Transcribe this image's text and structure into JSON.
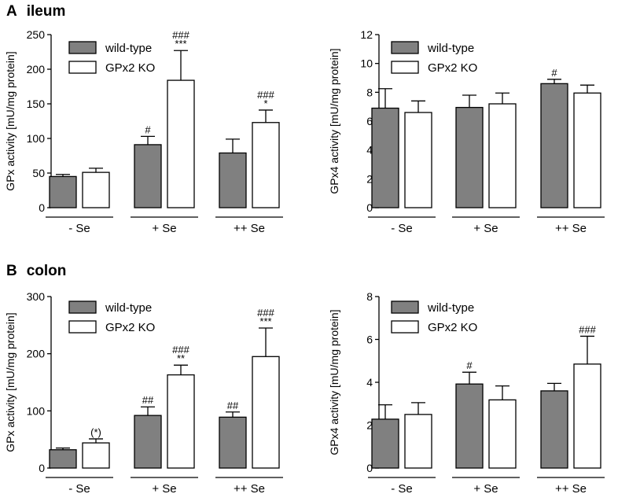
{
  "sections": [
    {
      "letter": "A",
      "title": "ileum"
    },
    {
      "letter": "B",
      "title": "colon"
    }
  ],
  "colors": {
    "wild_type": "#808080",
    "ko": "#ffffff",
    "stroke": "#000000"
  },
  "chart_data": [
    {
      "type": "bar",
      "panel": "ileum-gpx",
      "ylabel": "GPx activity [mU/mg protein]",
      "ylim": [
        0,
        250
      ],
      "yticks": [
        0,
        50,
        100,
        150,
        200,
        250
      ],
      "categories": [
        "- Se",
        "+ Se",
        "++ Se"
      ],
      "legend": "top-left",
      "series": [
        {
          "name": "wild-type",
          "values": [
            45,
            91,
            79
          ],
          "errors": [
            3,
            12,
            20
          ],
          "annotations": [
            "",
            "#",
            ""
          ]
        },
        {
          "name": "GPx2 KO",
          "values": [
            51,
            184,
            123
          ],
          "errors": [
            6,
            43,
            18
          ],
          "annotations": [
            "",
            "###\n***",
            "###\n*"
          ]
        }
      ]
    },
    {
      "type": "bar",
      "panel": "ileum-gpx4",
      "ylabel": "GPx4 activity [mU/mg protein]",
      "ylim": [
        0,
        12
      ],
      "yticks": [
        0,
        2,
        4,
        6,
        8,
        10,
        12
      ],
      "categories": [
        "- Se",
        "+ Se",
        "++ Se"
      ],
      "legend": "top-left",
      "series": [
        {
          "name": "wild-type",
          "values": [
            6.9,
            6.95,
            8.6
          ],
          "errors": [
            1.35,
            0.85,
            0.3
          ],
          "annotations": [
            "",
            "",
            "#"
          ]
        },
        {
          "name": "GPx2 KO",
          "values": [
            6.6,
            7.2,
            7.95
          ],
          "errors": [
            0.8,
            0.75,
            0.55
          ],
          "annotations": [
            "",
            "",
            ""
          ]
        }
      ]
    },
    {
      "type": "bar",
      "panel": "colon-gpx",
      "ylabel": "GPx activity [mU/mg protein]",
      "ylim": [
        0,
        300
      ],
      "yticks": [
        0,
        100,
        200,
        300
      ],
      "categories": [
        "- Se",
        "+ Se",
        "++ Se"
      ],
      "legend": "top-left",
      "series": [
        {
          "name": "wild-type",
          "values": [
            32,
            92,
            89
          ],
          "errors": [
            3,
            15,
            9
          ],
          "annotations": [
            "",
            "##",
            "##"
          ]
        },
        {
          "name": "GPx2 KO",
          "values": [
            44,
            163,
            195
          ],
          "errors": [
            7,
            17,
            50
          ],
          "annotations": [
            "(*)",
            "###\n**",
            "###\n***"
          ]
        }
      ]
    },
    {
      "type": "bar",
      "panel": "colon-gpx4",
      "ylabel": "GPx4 activity [mU/mg protein]",
      "ylim": [
        0,
        8
      ],
      "yticks": [
        0,
        2,
        4,
        6,
        8
      ],
      "categories": [
        "- Se",
        "+ Se",
        "++ Se"
      ],
      "legend": "top-left",
      "series": [
        {
          "name": "wild-type",
          "values": [
            2.28,
            3.92,
            3.6
          ],
          "errors": [
            0.67,
            0.55,
            0.35
          ],
          "annotations": [
            "",
            "#",
            ""
          ]
        },
        {
          "name": "GPx2 KO",
          "values": [
            2.5,
            3.18,
            4.85
          ],
          "errors": [
            0.55,
            0.65,
            1.3
          ],
          "annotations": [
            "",
            "",
            "###"
          ]
        }
      ]
    }
  ]
}
